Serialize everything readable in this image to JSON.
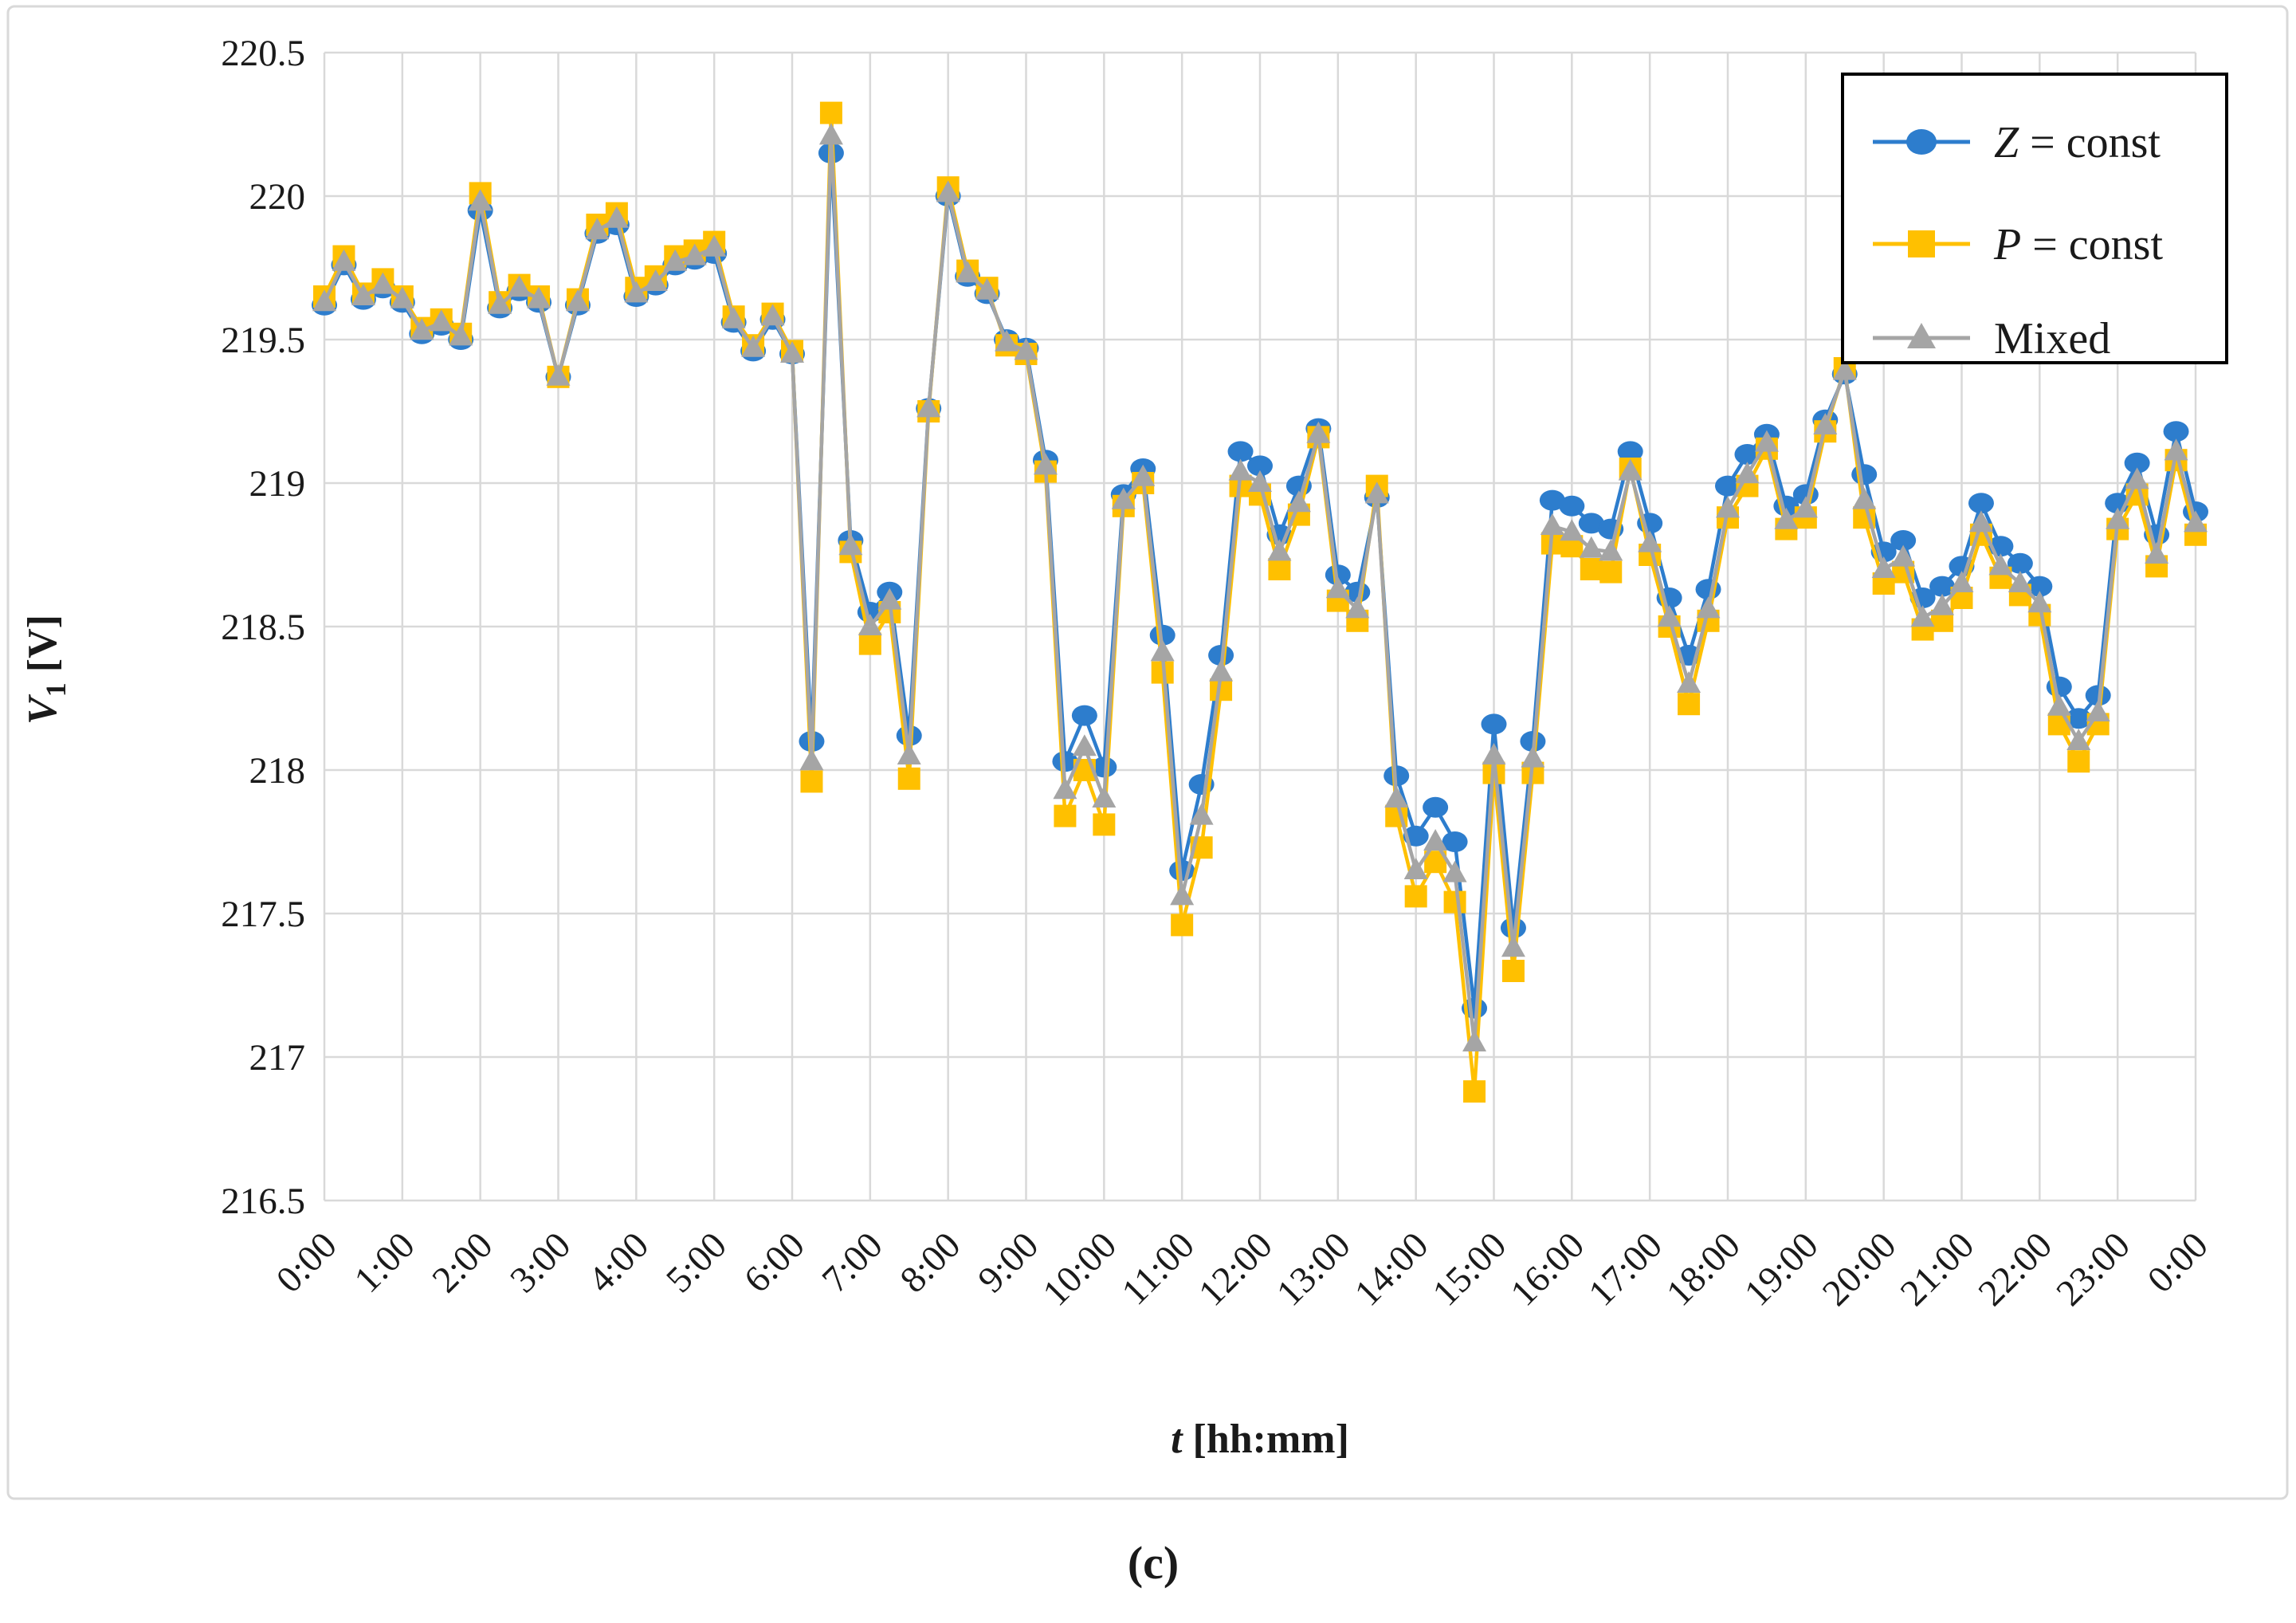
{
  "figure": {
    "caption": "(c)",
    "background": "#ffffff",
    "panel_border_color": "#d9d9d9",
    "gridline_color": "#d9d9d9",
    "legend_border_color": "#000000"
  },
  "chart_data": {
    "type": "line",
    "title": "",
    "xlabel_italic": "t",
    "xlabel_rest": " [hh:mm]",
    "ylabel_italic": "V",
    "ylabel_sub": "1",
    "ylabel_rest": " [V]",
    "ylim": [
      216.5,
      220.5
    ],
    "grid": true,
    "legend_position": "top-right",
    "x_minutes_step": 15,
    "y_tick_labels": [
      "220.5",
      "220",
      "219.5",
      "219",
      "218.5",
      "218",
      "217.5",
      "217",
      "216.5"
    ],
    "y_tick_values": [
      220.5,
      220,
      219.5,
      219,
      218.5,
      218,
      217.5,
      217,
      216.5
    ],
    "x_tick_labels": [
      "0:00",
      "1:00",
      "2:00",
      "3:00",
      "4:00",
      "5:00",
      "6:00",
      "7:00",
      "8:00",
      "9:00",
      "10:00",
      "11:00",
      "12:00",
      "13:00",
      "14:00",
      "15:00",
      "16:00",
      "17:00",
      "18:00",
      "19:00",
      "20:00",
      "21:00",
      "22:00",
      "23:00",
      "0:00"
    ],
    "times": [
      "0:00",
      "0:15",
      "0:30",
      "0:45",
      "1:00",
      "1:15",
      "1:30",
      "1:45",
      "2:00",
      "2:15",
      "2:30",
      "2:45",
      "3:00",
      "3:15",
      "3:30",
      "3:45",
      "4:00",
      "4:15",
      "4:30",
      "4:45",
      "5:00",
      "5:15",
      "5:30",
      "5:45",
      "6:00",
      "6:15",
      "6:30",
      "6:45",
      "7:00",
      "7:15",
      "7:30",
      "7:45",
      "8:00",
      "8:15",
      "8:30",
      "8:45",
      "9:00",
      "9:15",
      "9:30",
      "9:45",
      "10:00",
      "10:15",
      "10:30",
      "10:45",
      "11:00",
      "11:15",
      "11:30",
      "11:45",
      "12:00",
      "12:15",
      "12:30",
      "12:45",
      "13:00",
      "13:15",
      "13:30",
      "13:45",
      "14:00",
      "14:15",
      "14:30",
      "14:45",
      "15:00",
      "15:15",
      "15:30",
      "15:45",
      "16:00",
      "16:15",
      "16:30",
      "16:45",
      "17:00",
      "17:15",
      "17:30",
      "17:45",
      "18:00",
      "18:15",
      "18:30",
      "18:45",
      "19:00",
      "19:15",
      "19:30",
      "19:45",
      "20:00",
      "20:15",
      "20:30",
      "20:45",
      "21:00",
      "21:15",
      "21:30",
      "21:45",
      "22:00",
      "22:15",
      "22:30",
      "22:45",
      "23:00",
      "23:15",
      "23:30",
      "23:45",
      "0:00"
    ],
    "series": [
      {
        "name": "Z = const",
        "name_italic": "Z",
        "name_rest": " = const",
        "color": "#2d7dcd",
        "marker": "circle",
        "values": [
          219.62,
          219.76,
          219.64,
          219.68,
          219.63,
          219.52,
          219.55,
          219.5,
          219.95,
          219.61,
          219.67,
          219.63,
          219.37,
          219.62,
          219.87,
          219.9,
          219.65,
          219.69,
          219.76,
          219.78,
          219.8,
          219.56,
          219.46,
          219.57,
          219.45,
          218.1,
          220.15,
          218.8,
          218.55,
          218.62,
          218.12,
          219.26,
          220.0,
          219.72,
          219.66,
          219.5,
          219.47,
          219.08,
          218.03,
          218.19,
          218.01,
          218.96,
          219.05,
          218.47,
          217.65,
          217.95,
          218.4,
          219.11,
          219.06,
          218.82,
          218.99,
          219.19,
          218.68,
          218.62,
          218.95,
          217.98,
          217.77,
          217.87,
          217.75,
          217.17,
          218.16,
          217.45,
          218.1,
          218.94,
          218.92,
          218.86,
          218.84,
          219.11,
          218.86,
          218.6,
          218.4,
          218.63,
          218.99,
          219.1,
          219.17,
          218.92,
          218.96,
          219.22,
          219.38,
          219.03,
          218.76,
          218.8,
          218.6,
          218.64,
          218.71,
          218.93,
          218.78,
          218.72,
          218.64,
          218.29,
          218.18,
          218.26,
          218.93,
          219.07,
          218.82,
          219.18,
          218.9
        ]
      },
      {
        "name": "P = const",
        "name_italic": "P",
        "name_rest": " = const",
        "color": "#ffc000",
        "marker": "square",
        "values": [
          219.65,
          219.79,
          219.66,
          219.71,
          219.65,
          219.54,
          219.57,
          219.52,
          220.01,
          219.63,
          219.69,
          219.65,
          219.37,
          219.64,
          219.9,
          219.94,
          219.68,
          219.72,
          219.79,
          219.81,
          219.84,
          219.58,
          219.48,
          219.59,
          219.46,
          217.96,
          220.29,
          218.76,
          218.44,
          218.55,
          217.97,
          219.25,
          220.03,
          219.74,
          219.68,
          219.48,
          219.45,
          219.04,
          217.84,
          218.0,
          217.81,
          218.92,
          219.0,
          218.34,
          217.46,
          217.73,
          218.28,
          218.99,
          218.96,
          218.7,
          218.89,
          219.16,
          218.59,
          218.52,
          218.99,
          217.84,
          217.56,
          217.68,
          217.54,
          216.88,
          217.99,
          217.3,
          217.99,
          218.79,
          218.78,
          218.7,
          218.69,
          219.05,
          218.75,
          218.5,
          218.23,
          218.52,
          218.88,
          218.99,
          219.12,
          218.84,
          218.88,
          219.18,
          219.4,
          218.88,
          218.65,
          218.69,
          218.49,
          218.52,
          218.6,
          218.82,
          218.67,
          218.61,
          218.54,
          218.16,
          218.03,
          218.16,
          218.84,
          218.96,
          218.71,
          219.08,
          218.82
        ]
      },
      {
        "name": "Mixed",
        "name_italic": "",
        "name_rest": "Mixed",
        "color": "#a5a5a5",
        "marker": "triangle",
        "values": [
          219.63,
          219.77,
          219.65,
          219.69,
          219.64,
          219.53,
          219.56,
          219.51,
          219.98,
          219.62,
          219.68,
          219.64,
          219.37,
          219.63,
          219.88,
          219.92,
          219.66,
          219.7,
          219.77,
          219.79,
          219.82,
          219.57,
          219.47,
          219.58,
          219.45,
          218.03,
          220.21,
          218.78,
          218.5,
          218.59,
          218.05,
          219.26,
          220.01,
          219.73,
          219.67,
          219.49,
          219.46,
          219.06,
          217.93,
          218.08,
          217.9,
          218.94,
          219.02,
          218.41,
          217.56,
          217.84,
          218.34,
          219.04,
          219.0,
          218.76,
          218.93,
          219.17,
          218.63,
          218.56,
          218.96,
          217.9,
          217.65,
          217.75,
          217.64,
          217.05,
          218.05,
          217.38,
          218.04,
          218.85,
          218.83,
          218.77,
          218.76,
          219.04,
          218.79,
          218.53,
          218.3,
          218.56,
          218.91,
          219.03,
          219.14,
          218.87,
          218.91,
          219.2,
          219.39,
          218.94,
          218.7,
          218.74,
          218.53,
          218.57,
          218.65,
          218.86,
          218.71,
          218.65,
          218.58,
          218.22,
          218.1,
          218.2,
          218.87,
          219.01,
          218.75,
          219.11,
          218.86
        ]
      }
    ]
  }
}
